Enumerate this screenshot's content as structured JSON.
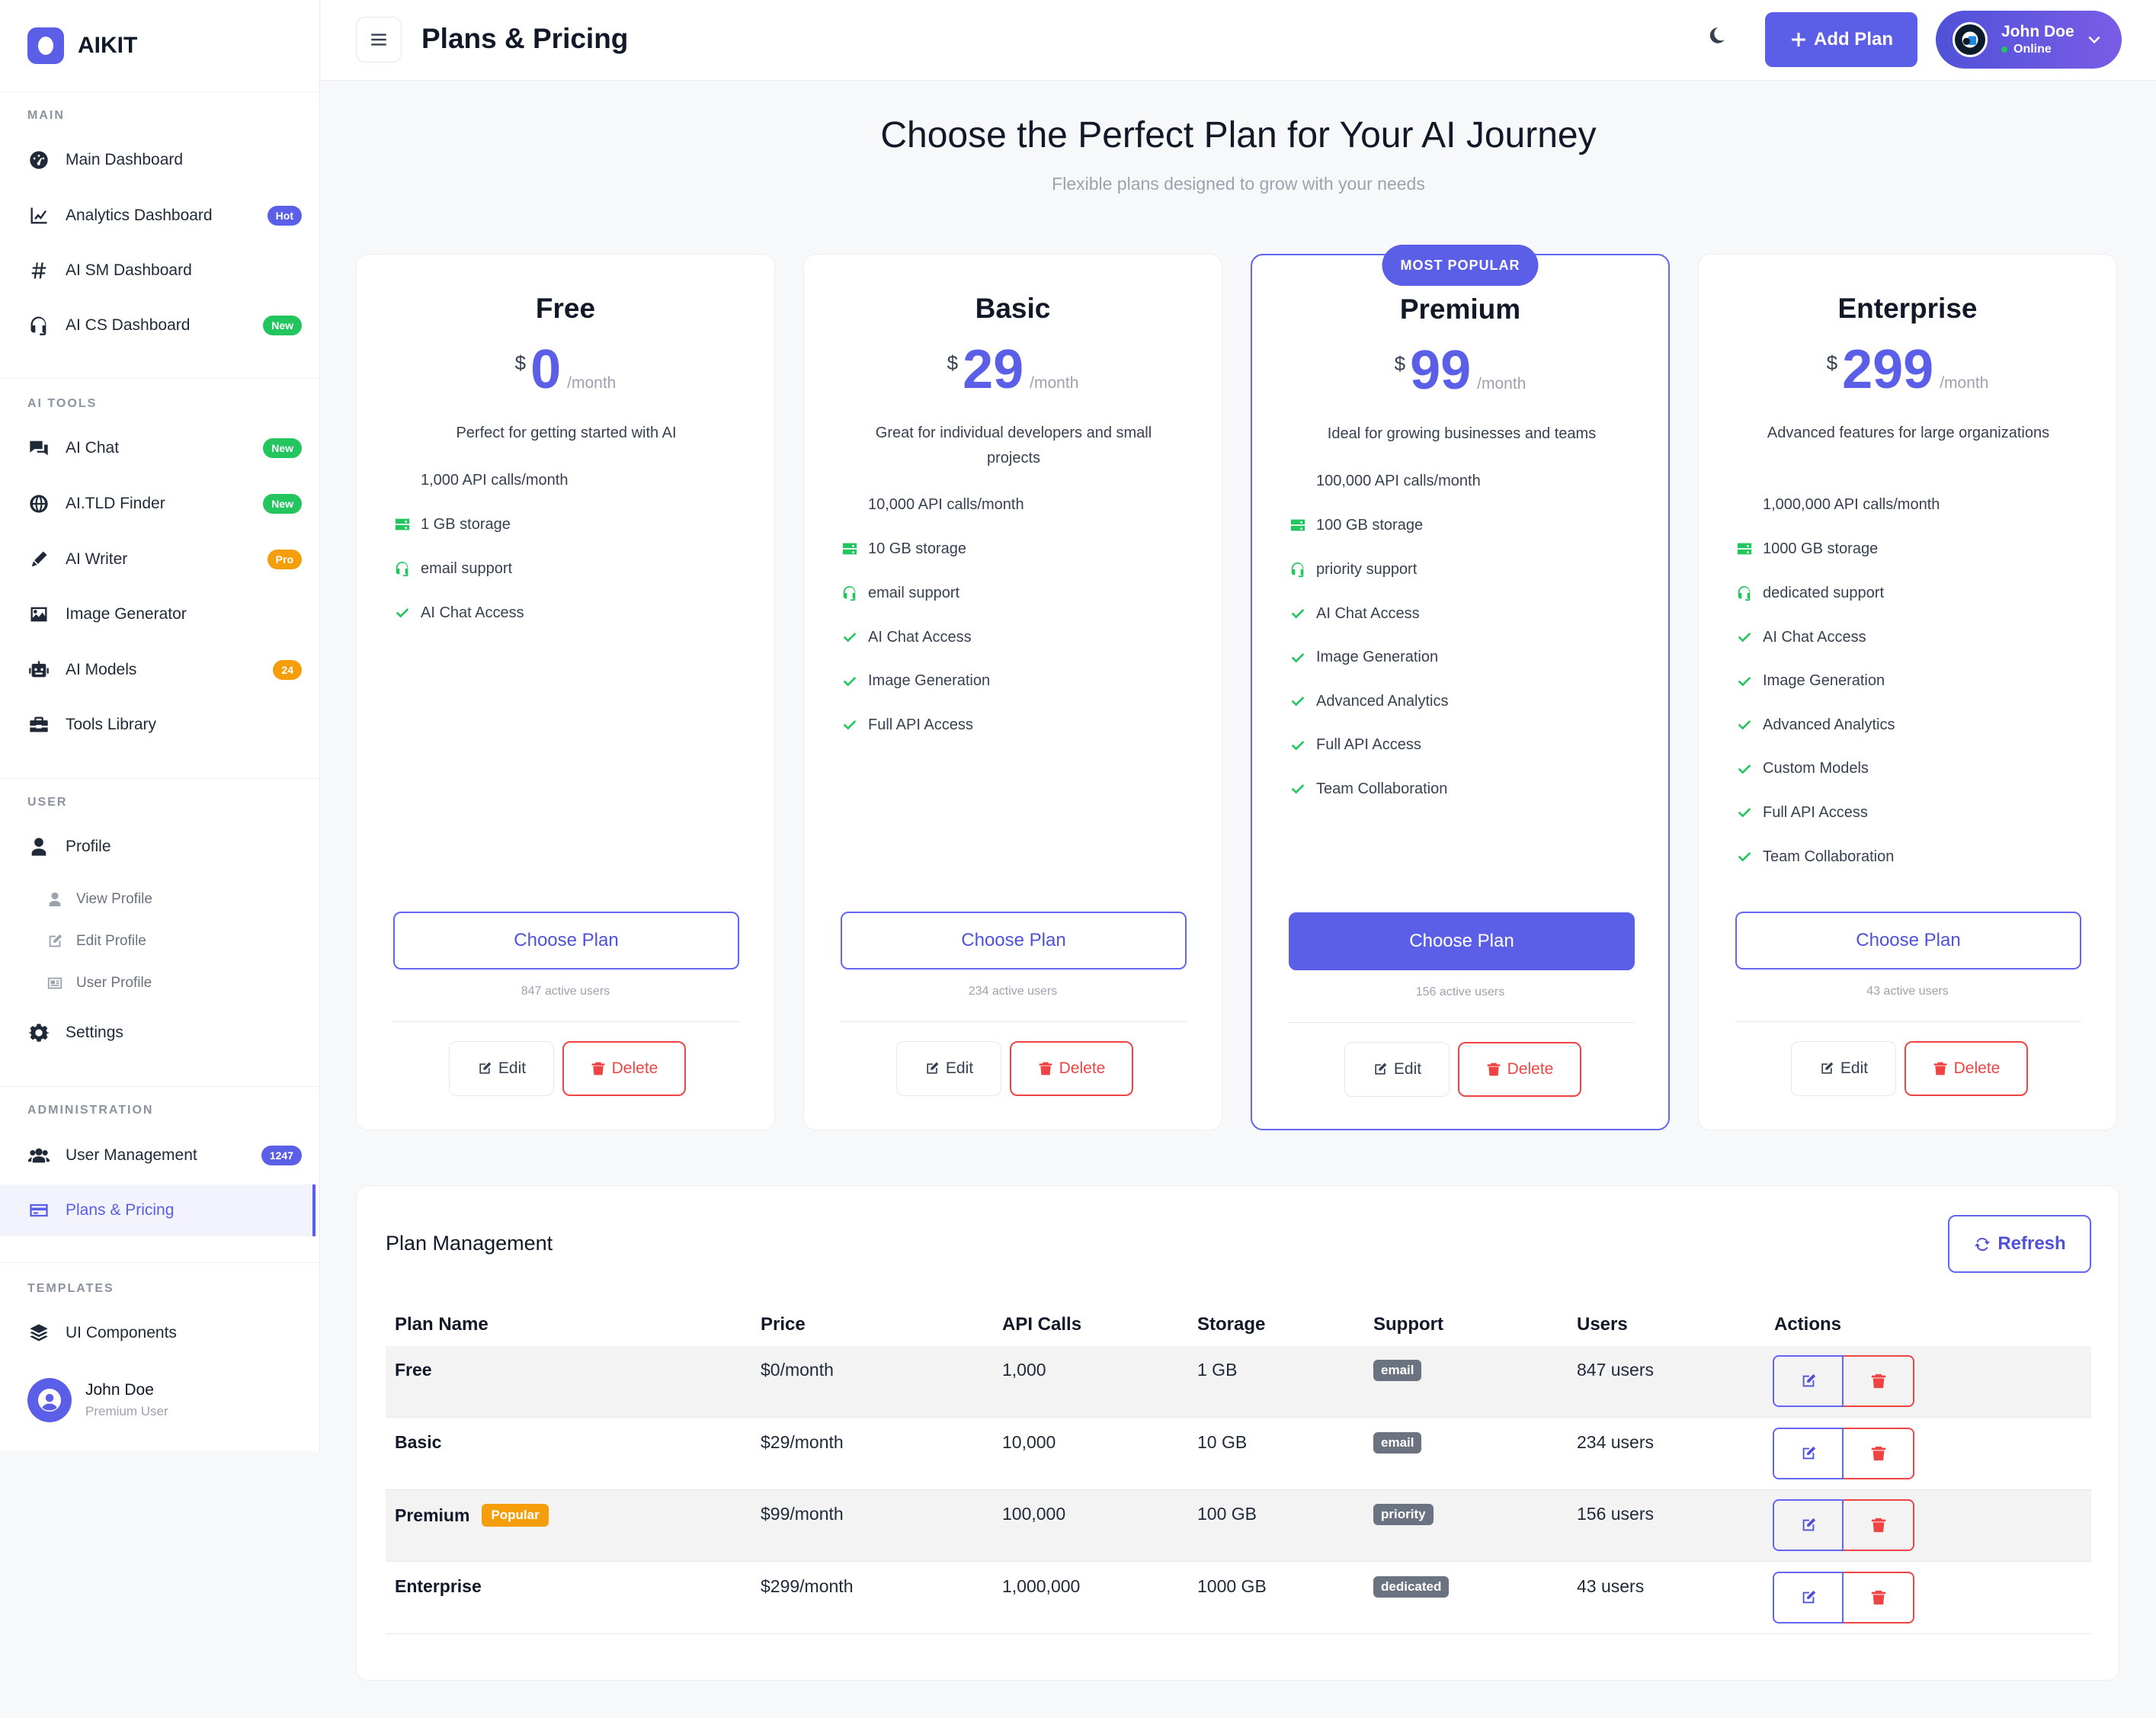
{
  "brand": {
    "name": "AIKIT"
  },
  "sidebar": {
    "sections": {
      "main": "MAIN",
      "ai_tools": "AI TOOLS",
      "user": "USER",
      "administration": "ADMINISTRATION",
      "templates": "TEMPLATES"
    },
    "main": [
      {
        "label": "Main Dashboard",
        "icon": "gauge-icon"
      },
      {
        "label": "Analytics Dashboard",
        "icon": "chart-line-icon",
        "badge": "Hot"
      },
      {
        "label": "AI SM Dashboard",
        "icon": "hashtag-icon"
      },
      {
        "label": "AI CS Dashboard",
        "icon": "headset-icon",
        "badge": "New"
      }
    ],
    "ai_tools": [
      {
        "label": "AI Chat",
        "icon": "comments-icon",
        "badge": "New"
      },
      {
        "label": "AI.TLD Finder",
        "icon": "globe-icon",
        "badge": "New"
      },
      {
        "label": "AI Writer",
        "icon": "pen-icon",
        "badge": "Pro"
      },
      {
        "label": "Image Generator",
        "icon": "image-icon"
      },
      {
        "label": "AI Models",
        "icon": "robot-icon",
        "badge": "24"
      },
      {
        "label": "Tools Library",
        "icon": "toolbox-icon"
      }
    ],
    "user": {
      "profile": "Profile",
      "sub": [
        {
          "label": "View Profile",
          "icon": "user-icon"
        },
        {
          "label": "Edit Profile",
          "icon": "edit-icon"
        },
        {
          "label": "User Profile",
          "icon": "id-card-icon"
        }
      ],
      "settings": "Settings"
    },
    "administration": [
      {
        "label": "User Management",
        "icon": "users-icon",
        "badge": "1247"
      },
      {
        "label": "Plans & Pricing",
        "icon": "credit-card-icon"
      }
    ],
    "templates": [
      {
        "label": "UI Components",
        "icon": "layers-icon"
      }
    ],
    "account": {
      "name": "John Doe",
      "role": "Premium User"
    }
  },
  "header": {
    "title": "Plans & Pricing",
    "add_plan": "Add Plan",
    "user": {
      "name": "John Doe",
      "status": "Online"
    }
  },
  "hero": {
    "title": "Choose the Perfect Plan for Your AI Journey",
    "subtitle": "Flexible plans designed to grow with your needs"
  },
  "common": {
    "currency": "$",
    "per": "/month",
    "choose": "Choose Plan",
    "edit": "Edit",
    "delete": "Delete",
    "popular_badge": "MOST POPULAR"
  },
  "plans": [
    {
      "name": "Free",
      "price": "0",
      "desc": "Perfect for getting started with AI",
      "api": "1,000 API calls/month",
      "storage": "1 GB storage",
      "support": "email support",
      "features": [
        "AI Chat Access"
      ],
      "users": "847 active users"
    },
    {
      "name": "Basic",
      "price": "29",
      "desc": "Great for individual developers and small projects",
      "api": "10,000 API calls/month",
      "storage": "10 GB storage",
      "support": "email support",
      "features": [
        "AI Chat Access",
        "Image Generation",
        "Full API Access"
      ],
      "users": "234 active users"
    },
    {
      "name": "Premium",
      "price": "99",
      "desc": "Ideal for growing businesses and teams",
      "api": "100,000 API calls/month",
      "storage": "100 GB storage",
      "support": "priority support",
      "features": [
        "AI Chat Access",
        "Image Generation",
        "Advanced Analytics",
        "Full API Access",
        "Team Collaboration"
      ],
      "users": "156 active users"
    },
    {
      "name": "Enterprise",
      "price": "299",
      "desc": "Advanced features for large organizations",
      "api": "1,000,000 API calls/month",
      "storage": "1000 GB storage",
      "support": "dedicated support",
      "features": [
        "AI Chat Access",
        "Image Generation",
        "Advanced Analytics",
        "Custom Models",
        "Full API Access",
        "Team Collaboration"
      ],
      "users": "43 active users"
    }
  ],
  "management": {
    "title": "Plan Management",
    "refresh": "Refresh",
    "columns": [
      "Plan Name",
      "Price",
      "API Calls",
      "Storage",
      "Support",
      "Users",
      "Actions"
    ],
    "popular_tag": "Popular",
    "rows": [
      {
        "name": "Free",
        "price": "$0/month",
        "api": "1,000",
        "storage": "1 GB",
        "support": "email",
        "users": "847 users"
      },
      {
        "name": "Basic",
        "price": "$29/month",
        "api": "10,000",
        "storage": "10 GB",
        "support": "email",
        "users": "234 users"
      },
      {
        "name": "Premium",
        "price": "$99/month",
        "api": "100,000",
        "storage": "100 GB",
        "support": "priority",
        "users": "156 users"
      },
      {
        "name": "Enterprise",
        "price": "$299/month",
        "api": "1,000,000",
        "storage": "1000 GB",
        "support": "dedicated",
        "users": "43 users"
      }
    ]
  },
  "colors": {
    "accent": "#5b5fe8",
    "success": "#22c55e",
    "danger": "#ef4444",
    "warning": "#f59e0b"
  }
}
